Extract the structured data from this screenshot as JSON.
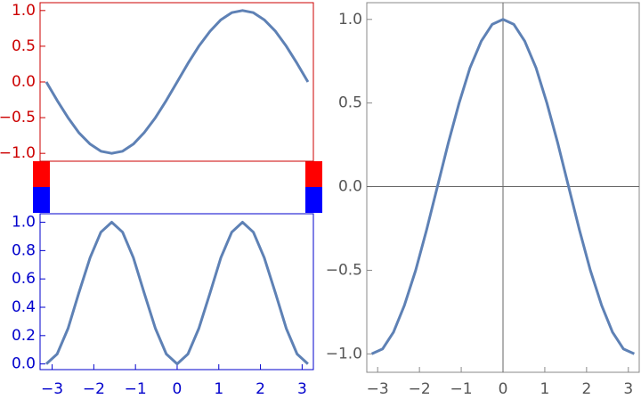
{
  "chart_data": [
    {
      "type": "line",
      "color": "#5e81b5",
      "frame_color": "#cc0000",
      "x": [
        -3.14,
        -2.88,
        -2.62,
        -2.36,
        -2.09,
        -1.83,
        -1.57,
        -1.31,
        -1.05,
        -0.79,
        -0.52,
        -0.26,
        0,
        0.26,
        0.52,
        0.79,
        1.05,
        1.31,
        1.57,
        1.83,
        2.09,
        2.36,
        2.62,
        2.88,
        3.14
      ],
      "values": [
        0,
        -0.26,
        -0.5,
        -0.71,
        -0.87,
        -0.97,
        -1,
        -0.97,
        -0.87,
        -0.71,
        -0.5,
        -0.26,
        0,
        0.26,
        0.5,
        0.71,
        0.87,
        0.97,
        1,
        0.97,
        0.87,
        0.71,
        0.5,
        0.26,
        0
      ],
      "xlim": [
        -3.29,
        3.27
      ],
      "ylim": [
        -1.11,
        1.11
      ],
      "yticks": [
        {
          "value": -1,
          "label": "−1.0"
        },
        {
          "value": -0.5,
          "label": "−0.5"
        },
        {
          "value": 0,
          "label": "0.0"
        },
        0.5,
        {
          "value": 1,
          "label": "1.0"
        }
      ]
    },
    {
      "type": "line",
      "color": "#5e81b5",
      "frame_color": "#0000cc",
      "x": [
        -3.14,
        -2.88,
        -2.62,
        -2.36,
        -2.09,
        -1.83,
        -1.57,
        -1.31,
        -1.05,
        -0.79,
        -0.52,
        -0.26,
        0,
        0.26,
        0.52,
        0.79,
        1.05,
        1.31,
        1.57,
        1.83,
        2.09,
        2.36,
        2.62,
        2.88,
        3.14
      ],
      "values": [
        0,
        0.07,
        0.25,
        0.5,
        0.75,
        0.93,
        1,
        0.93,
        0.75,
        0.5,
        0.25,
        0.07,
        0,
        0.07,
        0.25,
        0.5,
        0.75,
        0.93,
        1,
        0.93,
        0.75,
        0.5,
        0.25,
        0.07,
        0
      ],
      "xlim": [
        -3.29,
        3.27
      ],
      "ylim": [
        -0.04,
        1.06
      ],
      "xticks": [
        {
          "value": -3,
          "label": "−3"
        },
        {
          "value": -2,
          "label": "−2"
        },
        {
          "value": -1,
          "label": "−1"
        },
        0,
        1,
        2,
        3
      ],
      "yticks": [
        {
          "value": 0,
          "label": "0.0"
        },
        0.2,
        0.4,
        0.6,
        0.8,
        {
          "value": 1,
          "label": "1.0"
        }
      ]
    },
    {
      "type": "line",
      "color": "#5e81b5",
      "frame_color": "#888888",
      "origin_axes": true,
      "x": [
        -3.14,
        -2.88,
        -2.62,
        -2.36,
        -2.09,
        -1.83,
        -1.57,
        -1.31,
        -1.05,
        -0.79,
        -0.52,
        -0.26,
        0,
        0.26,
        0.52,
        0.79,
        1.05,
        1.31,
        1.57,
        1.83,
        2.09,
        2.36,
        2.62,
        2.88,
        3.14
      ],
      "values": [
        -1,
        -0.97,
        -0.87,
        -0.71,
        -0.5,
        -0.26,
        0,
        0.26,
        0.5,
        0.71,
        0.87,
        0.97,
        1,
        0.97,
        0.87,
        0.71,
        0.5,
        0.26,
        0,
        -0.26,
        -0.5,
        -0.71,
        -0.87,
        -0.97,
        -1
      ],
      "xlim": [
        -3.26,
        3.26
      ],
      "ylim": [
        -1.11,
        1.1
      ],
      "xticks": [
        {
          "value": -3,
          "label": "−3"
        },
        {
          "value": -2,
          "label": "−2"
        },
        {
          "value": -1,
          "label": "−1"
        },
        0,
        1,
        2,
        3
      ],
      "yticks": [
        {
          "value": -1,
          "label": "−1.0"
        },
        {
          "value": -0.5,
          "label": "−0.5"
        },
        {
          "value": 0,
          "label": "0.0"
        },
        0.5,
        {
          "value": 1,
          "label": "1.0"
        }
      ]
    }
  ]
}
